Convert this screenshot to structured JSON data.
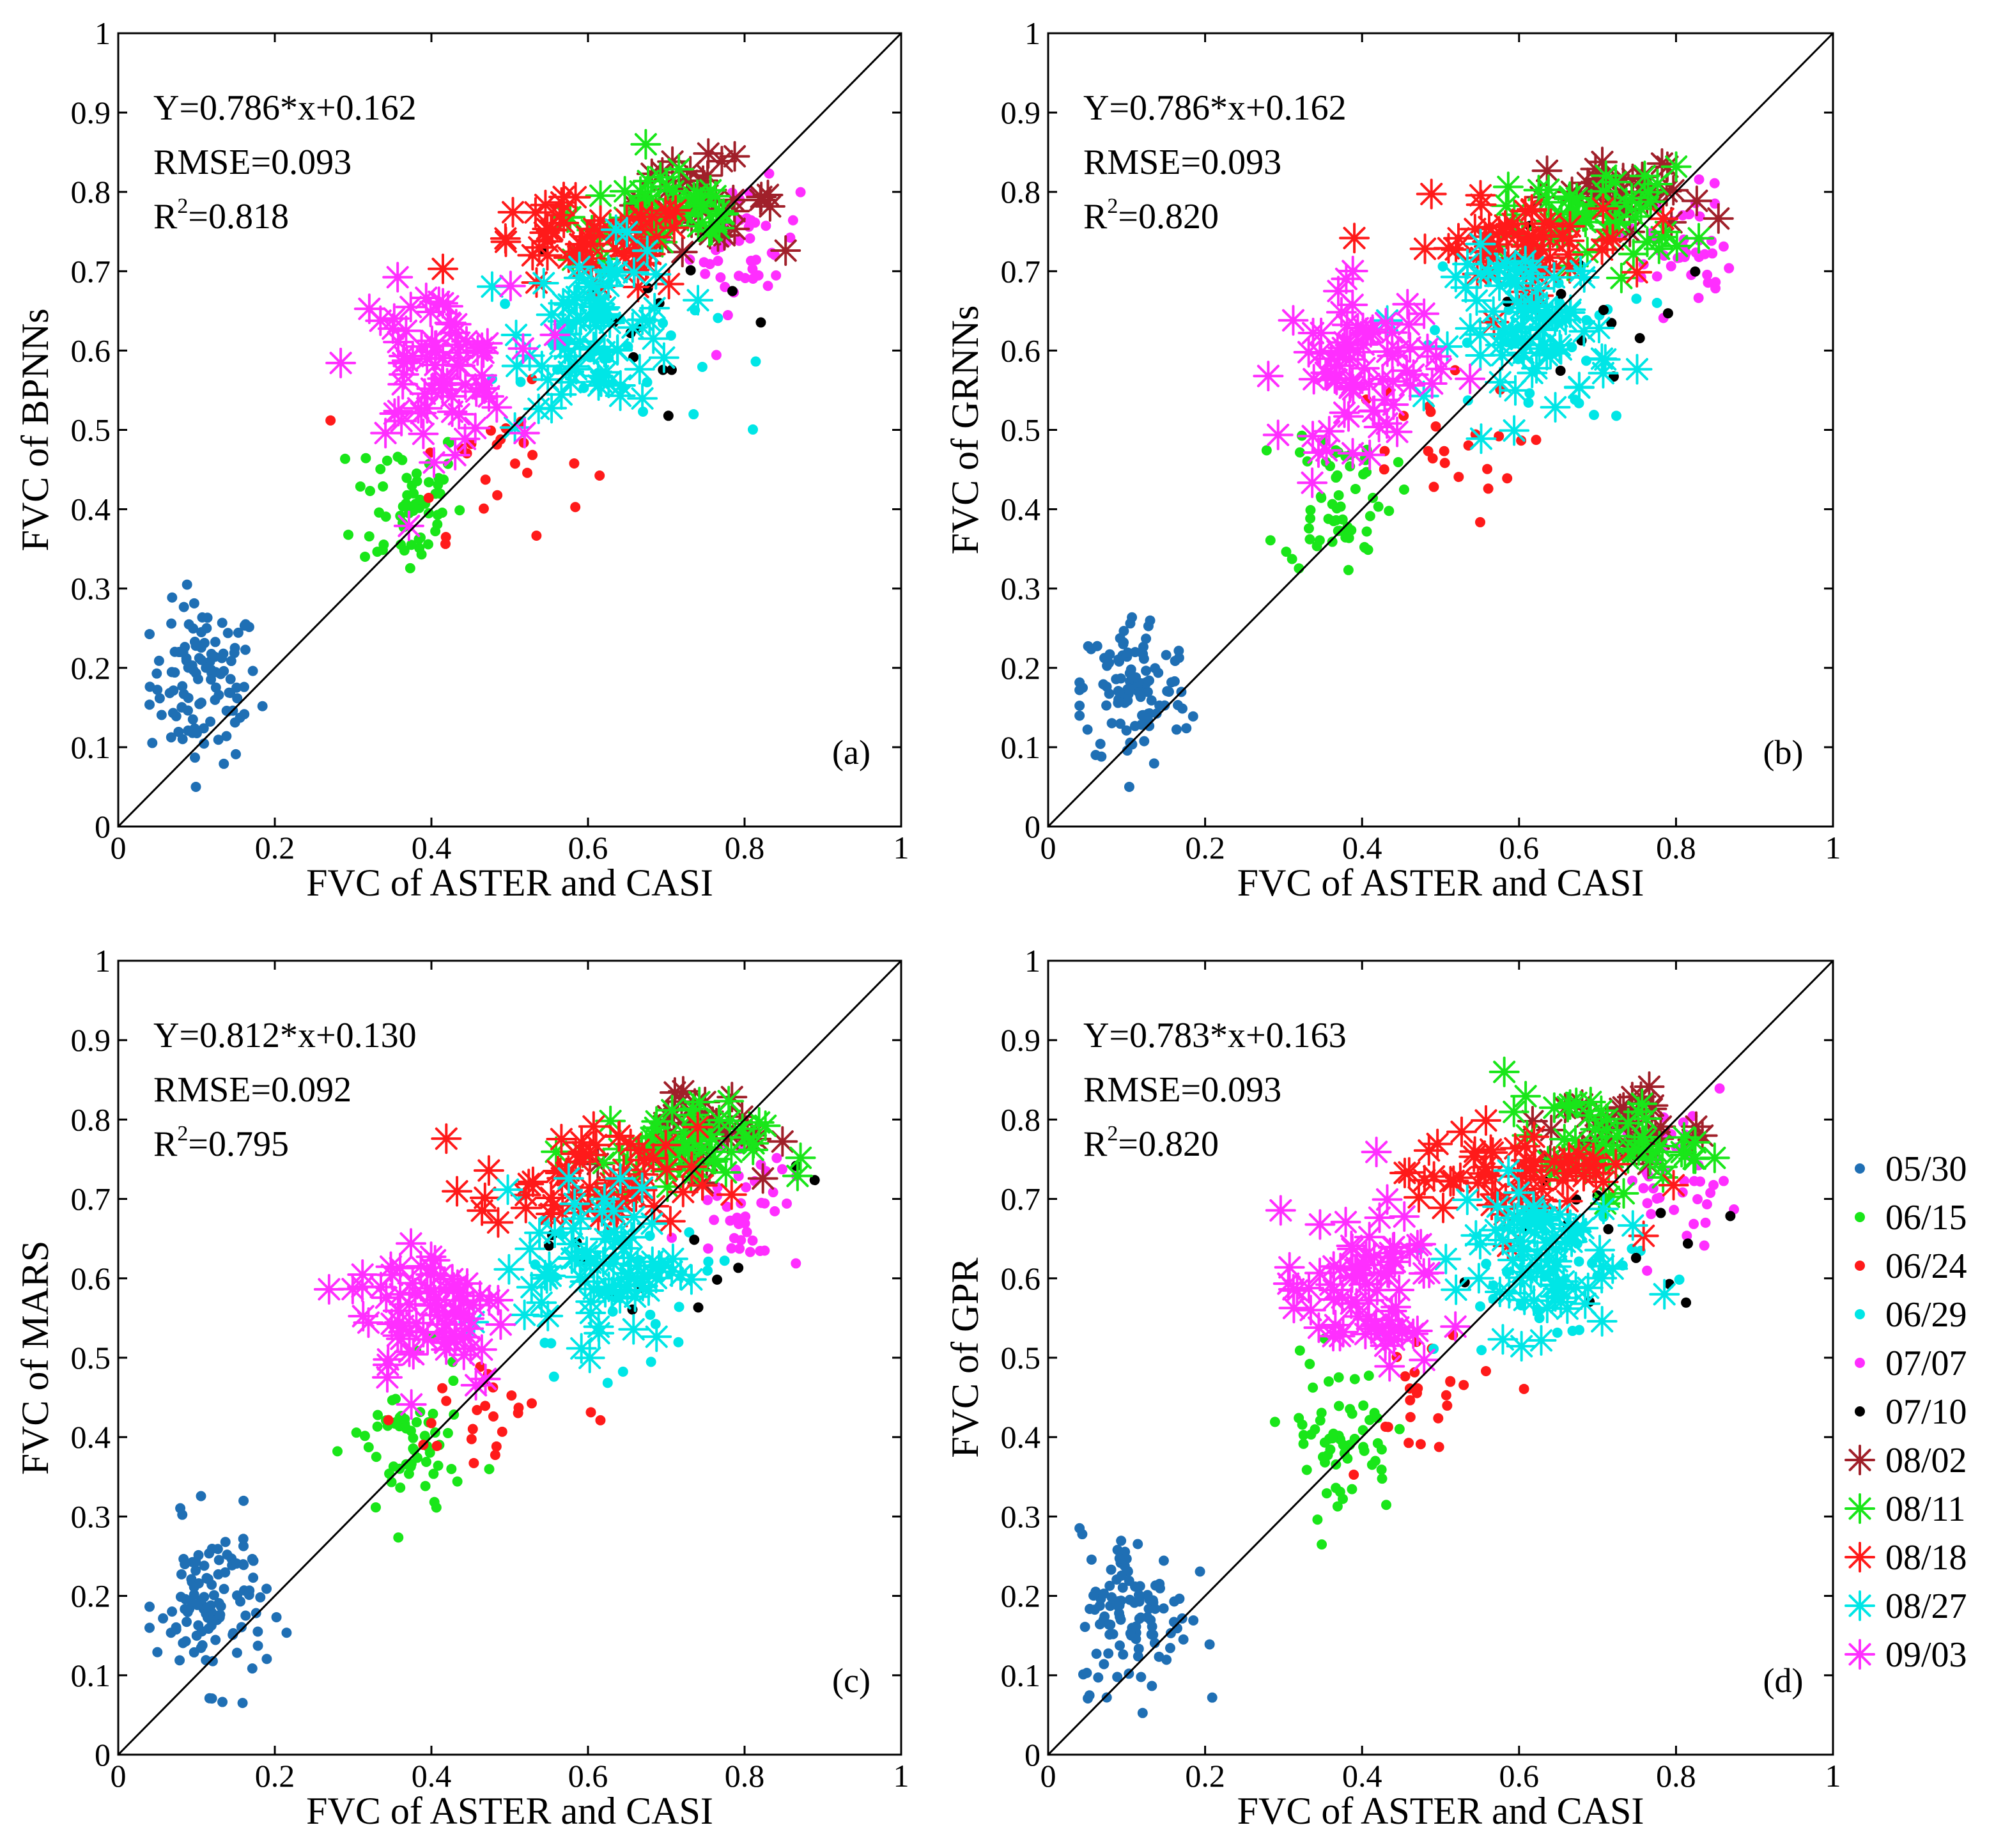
{
  "figure": {
    "legend": {
      "entries": [
        {
          "label": "05/30",
          "color": "#1f6fb4",
          "marker": "dot"
        },
        {
          "label": "06/15",
          "color": "#19e619",
          "marker": "dot"
        },
        {
          "label": "06/24",
          "color": "#ff1a1a",
          "marker": "dot"
        },
        {
          "label": "06/29",
          "color": "#00e6e6",
          "marker": "dot"
        },
        {
          "label": "07/07",
          "color": "#ff2eff",
          "marker": "dot"
        },
        {
          "label": "07/10",
          "color": "#000000",
          "marker": "dot"
        },
        {
          "label": "08/02",
          "color": "#a0202a",
          "marker": "star"
        },
        {
          "label": "08/11",
          "color": "#19e619",
          "marker": "star"
        },
        {
          "label": "08/18",
          "color": "#ff1a1a",
          "marker": "star"
        },
        {
          "label": "08/27",
          "color": "#00e6e6",
          "marker": "star"
        },
        {
          "label": "09/03",
          "color": "#ff2eff",
          "marker": "star"
        }
      ]
    }
  },
  "chart_data": [
    {
      "type": "scatter",
      "panel": "(a)",
      "ylabel": "FVC of BPNNs",
      "xlabel": "FVC of ASTER and CASI",
      "xlim": [
        0,
        1
      ],
      "ylim": [
        0,
        1
      ],
      "xticks": [
        "0",
        "0.2",
        "0.4",
        "0.6",
        "0.8",
        "1"
      ],
      "yticks": [
        "0",
        "0.1",
        "0.2",
        "0.3",
        "0.4",
        "0.5",
        "0.6",
        "0.7",
        "0.8",
        "0.9",
        "1"
      ],
      "equation": "Y=0.786*x+0.162",
      "rmse": "RMSE=0.093",
      "r2_prefix": "R",
      "r2_value": "=0.818",
      "reference_line": [
        [
          0,
          0
        ],
        [
          1,
          1
        ]
      ],
      "fit": {
        "slope": 0.786,
        "intercept": 0.162
      },
      "clusters": [
        {
          "series": "05/30",
          "cx": 0.11,
          "cy": 0.18,
          "sx": 0.035,
          "sy": 0.05,
          "n": 110
        },
        {
          "series": "06/15",
          "cx": 0.37,
          "cy": 0.41,
          "sx": 0.035,
          "sy": 0.05,
          "n": 60
        },
        {
          "series": "06/24",
          "cx": 0.48,
          "cy": 0.46,
          "sx": 0.06,
          "sy": 0.045,
          "n": 25
        },
        {
          "series": "06/29",
          "cx": 0.62,
          "cy": 0.6,
          "sx": 0.07,
          "sy": 0.05,
          "n": 30
        },
        {
          "series": "07/07",
          "cx": 0.8,
          "cy": 0.73,
          "sx": 0.035,
          "sy": 0.04,
          "n": 45
        },
        {
          "series": "07/10",
          "cx": 0.7,
          "cy": 0.65,
          "sx": 0.09,
          "sy": 0.06,
          "n": 14
        },
        {
          "series": "08/02",
          "cx": 0.74,
          "cy": 0.79,
          "sx": 0.05,
          "sy": 0.025,
          "n": 35
        },
        {
          "series": "08/11",
          "cx": 0.7,
          "cy": 0.77,
          "sx": 0.06,
          "sy": 0.03,
          "n": 55
        },
        {
          "series": "08/18",
          "cx": 0.6,
          "cy": 0.73,
          "sx": 0.07,
          "sy": 0.03,
          "n": 60
        },
        {
          "series": "08/27",
          "cx": 0.62,
          "cy": 0.63,
          "sx": 0.05,
          "sy": 0.05,
          "n": 75
        },
        {
          "series": "09/03",
          "cx": 0.4,
          "cy": 0.58,
          "sx": 0.05,
          "sy": 0.05,
          "n": 75
        }
      ]
    },
    {
      "type": "scatter",
      "panel": "(b)",
      "ylabel": "FVC of GRNNs",
      "xlabel": "FVC of ASTER and CASI",
      "xlim": [
        0,
        1
      ],
      "ylim": [
        0,
        1
      ],
      "xticks": [
        "0",
        "0.2",
        "0.4",
        "0.6",
        "0.8",
        "1"
      ],
      "yticks": [
        "0",
        "0.1",
        "0.2",
        "0.3",
        "0.4",
        "0.5",
        "0.6",
        "0.7",
        "0.8",
        "0.9",
        "1"
      ],
      "equation": "Y=0.786*x+0.162",
      "rmse": "RMSE=0.093",
      "r2_prefix": "R",
      "r2_value": "=0.820",
      "reference_line": [
        [
          0,
          0
        ],
        [
          1,
          1
        ]
      ],
      "fit": {
        "slope": 0.786,
        "intercept": 0.162
      },
      "clusters": [
        {
          "series": "05/30",
          "cx": 0.11,
          "cy": 0.17,
          "sx": 0.035,
          "sy": 0.05,
          "n": 110
        },
        {
          "series": "06/15",
          "cx": 0.37,
          "cy": 0.42,
          "sx": 0.035,
          "sy": 0.05,
          "n": 60
        },
        {
          "series": "06/24",
          "cx": 0.48,
          "cy": 0.47,
          "sx": 0.06,
          "sy": 0.045,
          "n": 25
        },
        {
          "series": "06/29",
          "cx": 0.62,
          "cy": 0.61,
          "sx": 0.07,
          "sy": 0.05,
          "n": 30
        },
        {
          "series": "07/07",
          "cx": 0.8,
          "cy": 0.73,
          "sx": 0.035,
          "sy": 0.04,
          "n": 45
        },
        {
          "series": "07/10",
          "cx": 0.7,
          "cy": 0.66,
          "sx": 0.09,
          "sy": 0.06,
          "n": 14
        },
        {
          "series": "08/02",
          "cx": 0.74,
          "cy": 0.79,
          "sx": 0.05,
          "sy": 0.025,
          "n": 35
        },
        {
          "series": "08/11",
          "cx": 0.7,
          "cy": 0.77,
          "sx": 0.06,
          "sy": 0.03,
          "n": 55
        },
        {
          "series": "08/18",
          "cx": 0.6,
          "cy": 0.73,
          "sx": 0.07,
          "sy": 0.03,
          "n": 60
        },
        {
          "series": "08/27",
          "cx": 0.62,
          "cy": 0.63,
          "sx": 0.05,
          "sy": 0.05,
          "n": 75
        },
        {
          "series": "09/03",
          "cx": 0.4,
          "cy": 0.58,
          "sx": 0.05,
          "sy": 0.05,
          "n": 75
        }
      ]
    },
    {
      "type": "scatter",
      "panel": "(c)",
      "ylabel": "FVC of MARS",
      "xlabel": "FVC of ASTER and CASI",
      "xlim": [
        0,
        1
      ],
      "ylim": [
        0,
        1
      ],
      "xticks": [
        "0",
        "0.2",
        "0.4",
        "0.6",
        "0.8",
        "1"
      ],
      "yticks": [
        "0",
        "0.1",
        "0.2",
        "0.3",
        "0.4",
        "0.5",
        "0.6",
        "0.7",
        "0.8",
        "0.9",
        "1"
      ],
      "equation": "Y=0.812*x+0.130",
      "rmse": "RMSE=0.092",
      "r2_prefix": "R",
      "r2_value": "=0.795",
      "reference_line": [
        [
          0,
          0
        ],
        [
          1,
          1
        ]
      ],
      "fit": {
        "slope": 0.812,
        "intercept": 0.13
      },
      "clusters": [
        {
          "series": "05/30",
          "cx": 0.12,
          "cy": 0.19,
          "sx": 0.035,
          "sy": 0.05,
          "n": 110
        },
        {
          "series": "06/15",
          "cx": 0.37,
          "cy": 0.38,
          "sx": 0.035,
          "sy": 0.05,
          "n": 60
        },
        {
          "series": "06/24",
          "cx": 0.48,
          "cy": 0.43,
          "sx": 0.06,
          "sy": 0.045,
          "n": 25
        },
        {
          "series": "06/29",
          "cx": 0.62,
          "cy": 0.58,
          "sx": 0.07,
          "sy": 0.05,
          "n": 30
        },
        {
          "series": "07/07",
          "cx": 0.8,
          "cy": 0.71,
          "sx": 0.035,
          "sy": 0.05,
          "n": 45
        },
        {
          "series": "07/10",
          "cx": 0.7,
          "cy": 0.64,
          "sx": 0.09,
          "sy": 0.07,
          "n": 14
        },
        {
          "series": "08/02",
          "cx": 0.74,
          "cy": 0.79,
          "sx": 0.05,
          "sy": 0.03,
          "n": 35
        },
        {
          "series": "08/11",
          "cx": 0.7,
          "cy": 0.76,
          "sx": 0.06,
          "sy": 0.03,
          "n": 55
        },
        {
          "series": "08/18",
          "cx": 0.6,
          "cy": 0.72,
          "sx": 0.07,
          "sy": 0.035,
          "n": 60
        },
        {
          "series": "08/27",
          "cx": 0.62,
          "cy": 0.62,
          "sx": 0.05,
          "sy": 0.05,
          "n": 75
        },
        {
          "series": "09/03",
          "cx": 0.4,
          "cy": 0.56,
          "sx": 0.05,
          "sy": 0.05,
          "n": 75
        }
      ]
    },
    {
      "type": "scatter",
      "panel": "(d)",
      "ylabel": "FVC of GPR",
      "xlabel": "FVC of ASTER and CASI",
      "xlim": [
        0,
        1
      ],
      "ylim": [
        0,
        1
      ],
      "xticks": [
        "0",
        "0.2",
        "0.4",
        "0.6",
        "0.8",
        "1"
      ],
      "yticks": [
        "0",
        "0.1",
        "0.2",
        "0.3",
        "0.4",
        "0.5",
        "0.6",
        "0.7",
        "0.8",
        "0.9",
        "1"
      ],
      "equation": "Y=0.783*x+0.163",
      "rmse": "RMSE=0.093",
      "r2_prefix": "R",
      "r2_value": "=0.820",
      "reference_line": [
        [
          0,
          0
        ],
        [
          1,
          1
        ]
      ],
      "fit": {
        "slope": 0.783,
        "intercept": 0.163
      },
      "clusters": [
        {
          "series": "05/30",
          "cx": 0.11,
          "cy": 0.18,
          "sx": 0.035,
          "sy": 0.05,
          "n": 110
        },
        {
          "series": "06/15",
          "cx": 0.37,
          "cy": 0.4,
          "sx": 0.035,
          "sy": 0.05,
          "n": 60
        },
        {
          "series": "06/24",
          "cx": 0.48,
          "cy": 0.46,
          "sx": 0.06,
          "sy": 0.045,
          "n": 25
        },
        {
          "series": "06/29",
          "cx": 0.62,
          "cy": 0.6,
          "sx": 0.07,
          "sy": 0.05,
          "n": 30
        },
        {
          "series": "07/07",
          "cx": 0.8,
          "cy": 0.73,
          "sx": 0.035,
          "sy": 0.04,
          "n": 45
        },
        {
          "series": "07/10",
          "cx": 0.7,
          "cy": 0.66,
          "sx": 0.09,
          "sy": 0.06,
          "n": 14
        },
        {
          "series": "08/02",
          "cx": 0.74,
          "cy": 0.79,
          "sx": 0.05,
          "sy": 0.025,
          "n": 35
        },
        {
          "series": "08/11",
          "cx": 0.7,
          "cy": 0.77,
          "sx": 0.06,
          "sy": 0.03,
          "n": 55
        },
        {
          "series": "08/18",
          "cx": 0.6,
          "cy": 0.73,
          "sx": 0.07,
          "sy": 0.03,
          "n": 60
        },
        {
          "series": "08/27",
          "cx": 0.62,
          "cy": 0.63,
          "sx": 0.05,
          "sy": 0.05,
          "n": 75
        },
        {
          "series": "09/03",
          "cx": 0.4,
          "cy": 0.58,
          "sx": 0.05,
          "sy": 0.05,
          "n": 75
        }
      ]
    }
  ]
}
